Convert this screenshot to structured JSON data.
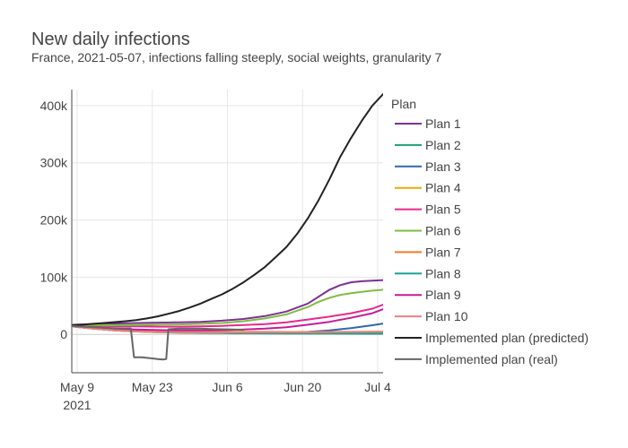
{
  "chart_data": {
    "type": "line",
    "title": "New daily infections",
    "subtitle": "France, 2021-05-07, infections falling steeply, social weights, granularity 7",
    "xlabel": "",
    "ylabel": "",
    "legend_title": "Plan",
    "legend_position": "right",
    "grid": true,
    "x_ticks": [
      {
        "day": 9,
        "label": "May 9",
        "sublabel": "2021"
      },
      {
        "day": 23,
        "label": "May 23",
        "sublabel": ""
      },
      {
        "day": 37,
        "label": "Jun 6",
        "sublabel": ""
      },
      {
        "day": 51,
        "label": "Jun 20",
        "sublabel": ""
      },
      {
        "day": 65,
        "label": "Jul 4",
        "sublabel": ""
      }
    ],
    "x_range_day": [
      8,
      66
    ],
    "y_ticks": [
      {
        "value": 0,
        "label": "0"
      },
      {
        "value": 100000,
        "label": "100k"
      },
      {
        "value": 200000,
        "label": "200k"
      },
      {
        "value": 300000,
        "label": "300k"
      },
      {
        "value": 400000,
        "label": "400k"
      }
    ],
    "y_range": [
      -67000,
      428000
    ],
    "series": [
      {
        "name": "Plan 1",
        "color": "#7b3294",
        "x": [
          8,
          12,
          16,
          20,
          24,
          28,
          32,
          36,
          40,
          44,
          48,
          52,
          56,
          58,
          60,
          62,
          64,
          66
        ],
        "y": [
          17000,
          18000,
          19000,
          20000,
          20500,
          21000,
          22000,
          24000,
          27000,
          32000,
          40000,
          54000,
          78000,
          86000,
          91000,
          93000,
          94000,
          95000
        ]
      },
      {
        "name": "Plan 2",
        "color": "#1b9e77",
        "x": [
          8,
          12,
          16,
          20,
          24,
          28,
          32,
          36,
          40,
          44,
          48,
          52,
          56,
          60,
          64,
          66
        ],
        "y": [
          14000,
          10000,
          7000,
          5000,
          4000,
          3000,
          2600,
          2300,
          2000,
          1800,
          1600,
          1500,
          1400,
          1300,
          1200,
          1200
        ]
      },
      {
        "name": "Plan 3",
        "color": "#3366aa",
        "x": [
          8,
          12,
          16,
          20,
          24,
          28,
          32,
          36,
          40,
          44,
          48,
          52,
          56,
          60,
          64,
          66
        ],
        "y": [
          14000,
          10000,
          7500,
          5500,
          4500,
          3800,
          3500,
          3300,
          3200,
          3200,
          3300,
          4500,
          7000,
          11000,
          16000,
          19000
        ]
      },
      {
        "name": "Plan 4",
        "color": "#e6ab02",
        "x": [
          8,
          12,
          16,
          20,
          24,
          28,
          32,
          36,
          40,
          44,
          48,
          52,
          56,
          60,
          64,
          66
        ],
        "y": [
          14000,
          10000,
          7000,
          5000,
          4000,
          3200,
          2900,
          2700,
          2600,
          2500,
          2500,
          2500,
          2600,
          2700,
          2800,
          2900
        ]
      },
      {
        "name": "Plan 5",
        "color": "#e7298a",
        "x": [
          8,
          12,
          16,
          20,
          24,
          28,
          32,
          36,
          40,
          44,
          48,
          52,
          56,
          60,
          64,
          66
        ],
        "y": [
          16000,
          15000,
          14500,
          14000,
          13500,
          13500,
          14000,
          15000,
          16500,
          18000,
          21000,
          26000,
          31000,
          37000,
          45000,
          52000
        ]
      },
      {
        "name": "Plan 6",
        "color": "#7fbc41",
        "x": [
          8,
          12,
          16,
          20,
          24,
          28,
          32,
          36,
          40,
          44,
          48,
          52,
          54,
          56,
          58,
          60,
          62,
          64,
          66
        ],
        "y": [
          17000,
          16500,
          16000,
          16500,
          17000,
          17500,
          18500,
          20000,
          23000,
          28000,
          35000,
          48000,
          57000,
          64000,
          69000,
          72000,
          74500,
          76500,
          78000
        ]
      },
      {
        "name": "Plan 7",
        "color": "#f4792b",
        "x": [
          8,
          12,
          16,
          20,
          24,
          28,
          32,
          36,
          40,
          44,
          48,
          52,
          56,
          60,
          64,
          66
        ],
        "y": [
          14000,
          10500,
          8000,
          6500,
          5500,
          5000,
          4800,
          4600,
          4500,
          4400,
          4300,
          4300,
          4400,
          4500,
          4600,
          4700
        ]
      },
      {
        "name": "Plan 8",
        "color": "#17a398",
        "x": [
          8,
          12,
          16,
          20,
          24,
          28,
          32,
          36,
          40,
          44,
          48,
          52,
          56,
          60,
          64,
          66
        ],
        "y": [
          14000,
          10000,
          7000,
          5200,
          4200,
          3400,
          3000,
          2800,
          2600,
          2500,
          2500,
          2500,
          2500,
          2600,
          2700,
          2800
        ]
      },
      {
        "name": "Plan 9",
        "color": "#c51b9c",
        "x": [
          8,
          12,
          16,
          20,
          24,
          28,
          32,
          36,
          40,
          44,
          48,
          52,
          56,
          60,
          64,
          66
        ],
        "y": [
          15000,
          12000,
          10000,
          8500,
          7500,
          7000,
          7000,
          7500,
          8500,
          10000,
          12500,
          17000,
          22000,
          29000,
          37000,
          44000
        ]
      },
      {
        "name": "Plan 10",
        "color": "#f08080",
        "x": [
          8,
          12,
          16,
          20,
          24,
          28,
          32,
          36,
          40,
          44,
          48,
          52,
          56,
          60,
          64,
          66
        ],
        "y": [
          14000,
          10000,
          7000,
          5200,
          4400,
          4000,
          3800,
          3700,
          3700,
          3800,
          3900,
          4000,
          4100,
          4300,
          4500,
          4600
        ]
      },
      {
        "name": "Implemented plan (predicted)",
        "color": "#222222",
        "x": [
          8,
          10,
          12,
          14,
          16,
          18,
          20,
          22,
          24,
          26,
          28,
          30,
          32,
          34,
          36,
          38,
          40,
          42,
          44,
          46,
          48,
          50,
          52,
          54,
          56,
          58,
          60,
          62,
          64,
          66
        ],
        "y": [
          16000,
          17000,
          18500,
          20000,
          21500,
          23000,
          25000,
          28000,
          31500,
          36000,
          41000,
          47000,
          54000,
          62000,
          70000,
          80000,
          91000,
          104000,
          118000,
          135000,
          153000,
          176000,
          203000,
          235000,
          271000,
          310000,
          343000,
          373000,
          400000,
          420000
        ]
      },
      {
        "name": "Implemented plan (real)",
        "color": "#666666",
        "x": [
          8,
          10,
          12,
          14,
          16,
          18,
          19,
          19.6,
          21,
          23,
          24,
          25,
          25.6,
          26,
          28,
          30,
          32,
          34,
          36,
          38,
          40
        ],
        "y": [
          15000,
          13500,
          12500,
          11500,
          11000,
          10500,
          10500,
          -40000,
          -40000,
          -42000,
          -43000,
          -44000,
          -43000,
          9000,
          10000,
          10000,
          10000,
          9500,
          9000,
          8500,
          8000
        ]
      }
    ]
  }
}
